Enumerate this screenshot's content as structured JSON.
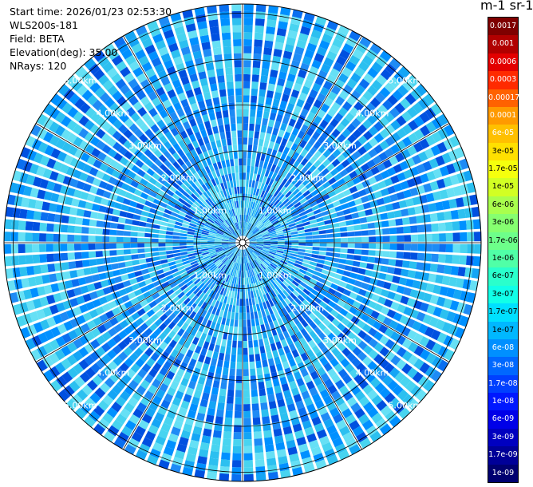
{
  "header": {
    "start_time": "Start time: 2026/01/23 02:53:30",
    "instrument": "WLS200s-181",
    "field": "Field: BETA",
    "elevation": "Elevation(deg): 35.00",
    "nrays": "NRays: 120"
  },
  "colorbar": {
    "title": "m-1 sr-1",
    "levels": [
      "0.0017",
      "0.001",
      "0.0006",
      "0.0003",
      "0.00017",
      "0.0001",
      "6e-05",
      "3e-05",
      "1.7e-05",
      "1e-05",
      "6e-06",
      "3e-06",
      "1.7e-06",
      "1e-06",
      "6e-07",
      "3e-07",
      "1.7e-07",
      "1e-07",
      "6e-08",
      "3e-08",
      "1.7e-08",
      "1e-08",
      "6e-09",
      "3e-09",
      "1.7e-09",
      "1e-09"
    ],
    "colors": [
      "#7f0000",
      "#b10000",
      "#e30000",
      "#ff2a00",
      "#ff6200",
      "#ff9a00",
      "#ffc000",
      "#ffe000",
      "#f5ff0d",
      "#d2ff24",
      "#a9ff4d",
      "#86ff70",
      "#6dff8a",
      "#50ffa7",
      "#2affcc",
      "#11ffe8",
      "#00e0ff",
      "#00b8ff",
      "#0090ff",
      "#0068ff",
      "#0040ff",
      "#0018ff",
      "#0000e8",
      "#0000c0",
      "#000098",
      "#000070"
    ]
  },
  "chart_data": {
    "type": "heatmap",
    "projection": "polar-ppi",
    "rays": 120,
    "range_rings_km": [
      1,
      2,
      3,
      4,
      5
    ],
    "range_labels": [
      "1.00km",
      "2.00km",
      "3.00km",
      "4.00km",
      "5.00km"
    ],
    "label_azimuths_deg": [
      45,
      135,
      225,
      315
    ],
    "spoke_count": 12,
    "max_range_km": 5.2,
    "dominant_band": "3e-08 to 1e-07",
    "enhanced_ring_km": [
      4.5,
      5.0
    ]
  }
}
